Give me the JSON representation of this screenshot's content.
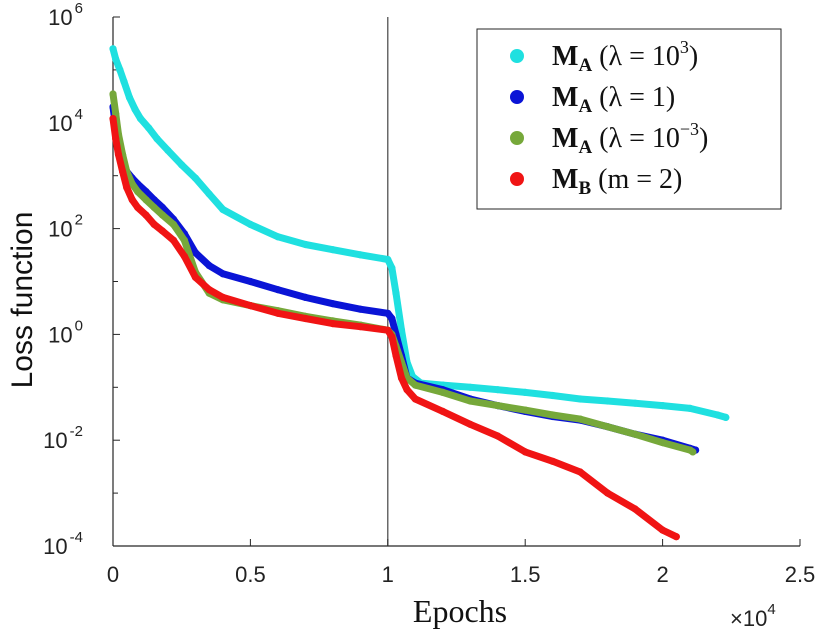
{
  "chart_data": {
    "type": "line",
    "xlabel": "Epochs",
    "ylabel": "Loss function",
    "x_scale_label": {
      "base": "×10",
      "exp": "4"
    },
    "xscale": "linear",
    "yscale": "log",
    "xlim": [
      0,
      25000
    ],
    "ylim": [
      0.0001,
      1000000
    ],
    "x_ticks": [
      {
        "value": 0,
        "label": "0"
      },
      {
        "value": 5000,
        "label": "0.5"
      },
      {
        "value": 10000,
        "label": "1"
      },
      {
        "value": 15000,
        "label": "1.5"
      },
      {
        "value": 20000,
        "label": "2"
      },
      {
        "value": 25000,
        "label": "2.5"
      }
    ],
    "y_ticks": [
      {
        "value": 0.0001,
        "base": "10",
        "exp": "-4"
      },
      {
        "value": 0.01,
        "base": "10",
        "exp": "-2"
      },
      {
        "value": 1,
        "base": "10",
        "exp": "0"
      },
      {
        "value": 100,
        "base": "10",
        "exp": "2"
      },
      {
        "value": 10000,
        "base": "10",
        "exp": "4"
      },
      {
        "value": 1000000,
        "base": "10",
        "exp": "6"
      }
    ],
    "vline_x": 10000,
    "legend_position": "top-right",
    "series": [
      {
        "name": "M_A (λ = 10^3)",
        "legend": {
          "M": "M",
          "sub": "A",
          "param": " (λ = 10",
          "sup": "3",
          "close": ")"
        },
        "color": "#1FE0E0",
        "points": [
          [
            0,
            250000
          ],
          [
            100,
            160000
          ],
          [
            250,
            100000
          ],
          [
            400,
            60000
          ],
          [
            600,
            30000
          ],
          [
            800,
            18000
          ],
          [
            1000,
            12000
          ],
          [
            1300,
            8000
          ],
          [
            1600,
            5000
          ],
          [
            2000,
            3000
          ],
          [
            2500,
            1600
          ],
          [
            3000,
            900
          ],
          [
            3500,
            450
          ],
          [
            4000,
            230
          ],
          [
            5000,
            120
          ],
          [
            6000,
            70
          ],
          [
            7000,
            50
          ],
          [
            8000,
            40
          ],
          [
            9000,
            32
          ],
          [
            10000,
            26
          ],
          [
            10150,
            18
          ],
          [
            10300,
            6
          ],
          [
            10500,
            1.2
          ],
          [
            10700,
            0.3
          ],
          [
            10900,
            0.16
          ],
          [
            11200,
            0.12
          ],
          [
            12000,
            0.11
          ],
          [
            13000,
            0.1
          ],
          [
            14000,
            0.09
          ],
          [
            15000,
            0.08
          ],
          [
            16000,
            0.07
          ],
          [
            17000,
            0.06
          ],
          [
            18000,
            0.055
          ],
          [
            19000,
            0.05
          ],
          [
            20000,
            0.045
          ],
          [
            21000,
            0.04
          ],
          [
            22000,
            0.03
          ],
          [
            22300,
            0.027
          ]
        ]
      },
      {
        "name": "M_A (λ = 1)",
        "legend": {
          "M": "M",
          "sub": "A",
          "param": " (λ = 1)",
          "sup": "",
          "close": ""
        },
        "color": "#0A14D6",
        "points": [
          [
            0,
            20000
          ],
          [
            100,
            8000
          ],
          [
            200,
            4000
          ],
          [
            350,
            2000
          ],
          [
            500,
            1200
          ],
          [
            700,
            900
          ],
          [
            900,
            700
          ],
          [
            1200,
            500
          ],
          [
            1500,
            350
          ],
          [
            1800,
            250
          ],
          [
            2200,
            150
          ],
          [
            2600,
            80
          ],
          [
            3000,
            35
          ],
          [
            3500,
            20
          ],
          [
            4000,
            14
          ],
          [
            5000,
            10
          ],
          [
            6000,
            7
          ],
          [
            7000,
            5
          ],
          [
            8000,
            3.8
          ],
          [
            9000,
            3
          ],
          [
            10000,
            2.5
          ],
          [
            10150,
            2
          ],
          [
            10300,
            1
          ],
          [
            10500,
            0.4
          ],
          [
            10700,
            0.15
          ],
          [
            11000,
            0.12
          ],
          [
            12000,
            0.09
          ],
          [
            13000,
            0.06
          ],
          [
            14000,
            0.045
          ],
          [
            15000,
            0.035
          ],
          [
            16000,
            0.028
          ],
          [
            17000,
            0.024
          ],
          [
            18000,
            0.018
          ],
          [
            19000,
            0.013
          ],
          [
            20000,
            0.01
          ],
          [
            21000,
            0.007
          ],
          [
            21200,
            0.0065
          ]
        ]
      },
      {
        "name": "M_A (λ = 10^-3)",
        "legend": {
          "M": "M",
          "sub": "A",
          "param": " (λ = 10",
          "sup": "−3",
          "close": ")"
        },
        "color": "#76A83A",
        "points": [
          [
            0,
            35000
          ],
          [
            100,
            15000
          ],
          [
            200,
            6000
          ],
          [
            350,
            2500
          ],
          [
            500,
            1200
          ],
          [
            700,
            700
          ],
          [
            900,
            500
          ],
          [
            1200,
            350
          ],
          [
            1500,
            250
          ],
          [
            1800,
            180
          ],
          [
            2200,
            120
          ],
          [
            2600,
            60
          ],
          [
            3000,
            15
          ],
          [
            3500,
            6
          ],
          [
            4000,
            4.5
          ],
          [
            5000,
            3.5
          ],
          [
            6000,
            2.8
          ],
          [
            7000,
            2.2
          ],
          [
            8000,
            1.8
          ],
          [
            9000,
            1.5
          ],
          [
            10000,
            1.2
          ],
          [
            10150,
            1
          ],
          [
            10300,
            0.6
          ],
          [
            10500,
            0.3
          ],
          [
            10700,
            0.15
          ],
          [
            11000,
            0.11
          ],
          [
            12000,
            0.08
          ],
          [
            13000,
            0.055
          ],
          [
            14000,
            0.045
          ],
          [
            15000,
            0.037
          ],
          [
            16000,
            0.03
          ],
          [
            17000,
            0.025
          ],
          [
            18000,
            0.018
          ],
          [
            19000,
            0.013
          ],
          [
            20000,
            0.009
          ],
          [
            21000,
            0.0065
          ],
          [
            21100,
            0.006
          ]
        ]
      },
      {
        "name": "M_B (m = 2)",
        "legend": {
          "M": "M",
          "sub": "B",
          "param": " (m = 2)",
          "sup": "",
          "close": ""
        },
        "color": "#F01414",
        "points": [
          [
            0,
            12000
          ],
          [
            100,
            5000
          ],
          [
            200,
            2500
          ],
          [
            350,
            1200
          ],
          [
            500,
            600
          ],
          [
            700,
            350
          ],
          [
            900,
            250
          ],
          [
            1200,
            180
          ],
          [
            1500,
            120
          ],
          [
            1800,
            90
          ],
          [
            2200,
            60
          ],
          [
            2600,
            30
          ],
          [
            3000,
            12
          ],
          [
            3500,
            7
          ],
          [
            4000,
            5
          ],
          [
            5000,
            3.5
          ],
          [
            6000,
            2.5
          ],
          [
            7000,
            2
          ],
          [
            8000,
            1.6
          ],
          [
            9000,
            1.4
          ],
          [
            10000,
            1.2
          ],
          [
            10150,
            0.9
          ],
          [
            10300,
            0.4
          ],
          [
            10500,
            0.15
          ],
          [
            10700,
            0.09
          ],
          [
            11000,
            0.06
          ],
          [
            12000,
            0.035
          ],
          [
            13000,
            0.02
          ],
          [
            14000,
            0.012
          ],
          [
            15000,
            0.006
          ],
          [
            16000,
            0.004
          ],
          [
            17000,
            0.0025
          ],
          [
            18000,
            0.001
          ],
          [
            19000,
            0.0005
          ],
          [
            20000,
            0.0002
          ],
          [
            20500,
            0.00015
          ]
        ]
      }
    ]
  }
}
